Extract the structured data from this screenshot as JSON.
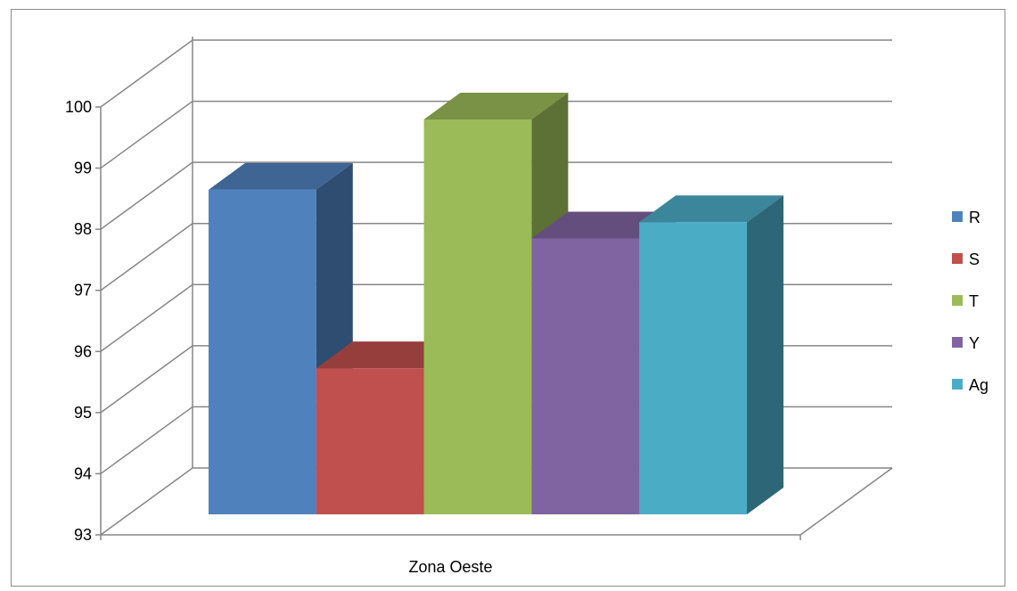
{
  "chart_data": {
    "type": "bar",
    "style": "3d-clustered-column",
    "categories": [
      "Zona Oeste"
    ],
    "series": [
      {
        "name": "R",
        "values": [
          99.0
        ],
        "color": "#4f81bd"
      },
      {
        "name": "S",
        "values": [
          95.7
        ],
        "color": "#c0504d"
      },
      {
        "name": "T",
        "values": [
          100.3
        ],
        "color": "#9bbb59"
      },
      {
        "name": "Y",
        "values": [
          98.1
        ],
        "color": "#8064a2"
      },
      {
        "name": "Ag",
        "values": [
          98.4
        ],
        "color": "#4bacc6"
      }
    ],
    "ylim": [
      93,
      100
    ],
    "yticks": [
      "93",
      "94",
      "95",
      "96",
      "97",
      "98",
      "99",
      "100"
    ],
    "grid": true,
    "legend": "right",
    "title": "",
    "xlabel": "",
    "ylabel": ""
  }
}
